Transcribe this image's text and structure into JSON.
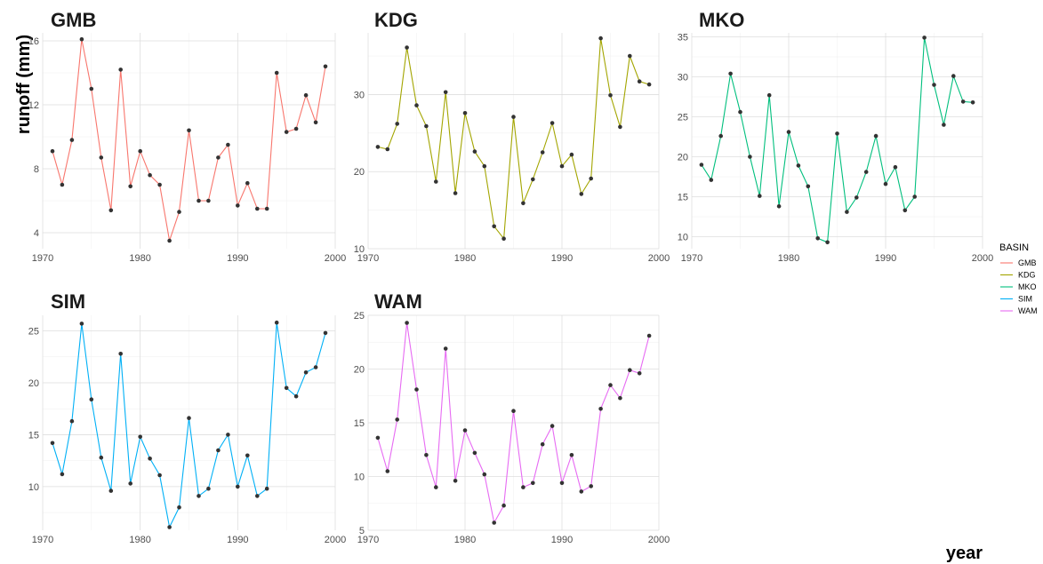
{
  "chart_data": {
    "type": "line",
    "xlabel": "year",
    "ylabel": "runoff (mm)",
    "legend": {
      "title": "BASIN",
      "position": "right",
      "entries": [
        "GMB",
        "KDG",
        "MKO",
        "SIM",
        "WAM"
      ]
    },
    "grid": true,
    "x": [
      1971,
      1972,
      1973,
      1974,
      1975,
      1976,
      1977,
      1978,
      1979,
      1980,
      1981,
      1982,
      1983,
      1984,
      1985,
      1986,
      1987,
      1988,
      1989,
      1990,
      1991,
      1992,
      1993,
      1994,
      1995,
      1996,
      1997,
      1998,
      1999
    ],
    "x_ticks": [
      1970,
      1980,
      1990,
      2000
    ],
    "xlim": [
      1970,
      2000
    ],
    "panels": [
      {
        "title": "GMB",
        "color": "#F8766D",
        "ylim": [
          3,
          16.5
        ],
        "y_ticks": [
          4,
          8,
          12,
          16
        ],
        "values": [
          9.1,
          7.0,
          9.8,
          16.1,
          13.0,
          8.7,
          5.4,
          14.2,
          6.9,
          9.1,
          7.6,
          7.0,
          3.5,
          5.3,
          10.4,
          6.0,
          6.0,
          8.7,
          9.5,
          5.7,
          7.1,
          5.5,
          5.5,
          14.0,
          10.3,
          10.5,
          12.6,
          10.9,
          14.4
        ]
      },
      {
        "title": "KDG",
        "color": "#A3A500",
        "ylim": [
          10,
          38
        ],
        "y_ticks": [
          10,
          20,
          30
        ],
        "values": [
          23.2,
          22.9,
          26.2,
          36.1,
          28.6,
          25.9,
          18.7,
          30.3,
          17.2,
          27.6,
          22.6,
          20.7,
          12.9,
          11.3,
          27.1,
          15.9,
          19.0,
          22.5,
          26.3,
          20.7,
          22.2,
          17.1,
          19.1,
          37.3,
          29.9,
          25.8,
          35.0,
          31.7,
          31.3
        ]
      },
      {
        "title": "MKO",
        "color": "#00BF7D",
        "ylim": [
          8.5,
          35.5
        ],
        "y_ticks": [
          10,
          15,
          20,
          25,
          30,
          35
        ],
        "values": [
          19.0,
          17.1,
          22.6,
          30.4,
          25.6,
          20.0,
          15.1,
          27.7,
          13.8,
          23.1,
          18.9,
          16.3,
          9.8,
          9.3,
          22.9,
          13.1,
          14.9,
          18.1,
          22.6,
          16.6,
          18.7,
          13.3,
          15.0,
          34.9,
          29.0,
          24.0,
          30.1,
          26.9,
          26.8
        ]
      },
      {
        "title": "SIM",
        "color": "#00B0F6",
        "ylim": [
          5.8,
          26.5
        ],
        "y_ticks": [
          10,
          15,
          20,
          25
        ],
        "values": [
          14.2,
          11.2,
          16.3,
          25.7,
          18.4,
          12.8,
          9.6,
          22.8,
          10.3,
          14.8,
          12.7,
          11.1,
          6.1,
          8.0,
          16.6,
          9.1,
          9.8,
          13.5,
          15.0,
          10.0,
          13.0,
          9.1,
          9.8,
          25.8,
          19.5,
          18.7,
          21.0,
          21.5,
          24.8
        ]
      },
      {
        "title": "WAM",
        "color": "#E76BF3",
        "ylim": [
          5,
          25
        ],
        "y_ticks": [
          5,
          10,
          15,
          20,
          25
        ],
        "values": [
          13.6,
          10.5,
          15.3,
          24.3,
          18.1,
          12.0,
          9.0,
          21.9,
          9.6,
          14.3,
          12.2,
          10.2,
          5.7,
          7.3,
          16.1,
          9.0,
          9.4,
          13.0,
          14.7,
          9.4,
          12.0,
          8.6,
          9.1,
          16.3,
          18.5,
          17.3,
          19.9,
          19.6,
          23.1
        ]
      }
    ]
  }
}
